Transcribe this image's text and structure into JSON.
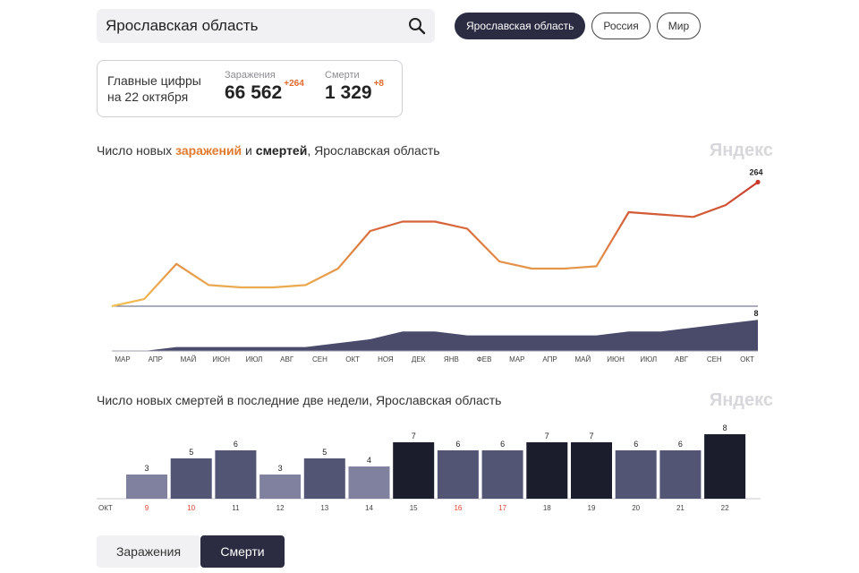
{
  "search": {
    "value": "Ярославская область"
  },
  "region_tabs": [
    {
      "label": "Ярославская область",
      "active": true
    },
    {
      "label": "Россия",
      "active": false
    },
    {
      "label": "Мир",
      "active": false
    }
  ],
  "stats": {
    "title_line1": "Главные цифры",
    "title_line2": "на 22 октября",
    "infections": {
      "label": "Заражения",
      "value": "66 562",
      "delta": "+264"
    },
    "deaths": {
      "label": "Смерти",
      "value": "1 329",
      "delta": "+8"
    }
  },
  "chart1": {
    "title_prefix": "Число новых ",
    "title_infections": "заражений",
    "title_middle": " и ",
    "title_deaths": "смертей",
    "title_suffix": ", Ярославская область",
    "watermark": "Яндекс",
    "last_infections_label": "264",
    "last_deaths_label": "8"
  },
  "chart2": {
    "title": "Число новых смертей в последние две недели, Ярославская область",
    "watermark": "Яндекс",
    "month_label": "ОКТ"
  },
  "bottom_tabs": [
    {
      "label": "Заражения",
      "active": false
    },
    {
      "label": "Смерти",
      "active": true
    }
  ],
  "colors": {
    "infection_start": "#f2be55",
    "infection_end": "#c8392c",
    "deaths_area": "#4a4b6a",
    "bar_light": "#7f819f",
    "bar_mid": "#535574",
    "bar_dark": "#1b1c2c",
    "weekend": "#e0442e"
  },
  "chart_data": [
    {
      "type": "line",
      "title": "Число новых заражений и смертей, Ярославская область",
      "x_ticks": [
        "МАР",
        "АПР",
        "МАЙ",
        "ИЮН",
        "ИЮЛ",
        "АВГ",
        "СЕН",
        "ОКТ",
        "НОЯ",
        "ДЕК",
        "ЯНВ",
        "ФЕВ",
        "МАР",
        "АПР",
        "МАЙ",
        "ИЮН",
        "ИЮЛ",
        "АВГ",
        "СЕН",
        "ОКТ"
      ],
      "series": [
        {
          "name": "заражений",
          "x": [
            "МАР",
            "АПР",
            "МАЙ",
            "ИЮН",
            "ИЮЛ",
            "АВГ",
            "СЕН",
            "ОКТ",
            "НОЯ",
            "ДЕК",
            "ЯНВ",
            "ФЕВ",
            "МАР",
            "АПР",
            "МАЙ",
            "ИЮН",
            "ИЮЛ",
            "АВГ",
            "СЕН",
            "ОКТ",
            "22 ОКТ"
          ],
          "values": [
            0,
            15,
            90,
            45,
            40,
            40,
            45,
            80,
            160,
            180,
            180,
            165,
            95,
            80,
            80,
            85,
            200,
            195,
            190,
            215,
            264
          ]
        },
        {
          "name": "смертей",
          "x": [
            "МАР",
            "АПР",
            "МАЙ",
            "ИЮН",
            "ИЮЛ",
            "АВГ",
            "СЕН",
            "ОКТ",
            "НОЯ",
            "ДЕК",
            "ЯНВ",
            "ФЕВ",
            "МАР",
            "АПР",
            "МАЙ",
            "ИЮН",
            "ИЮЛ",
            "АВГ",
            "СЕН",
            "ОКТ",
            "22 ОКТ"
          ],
          "values": [
            0,
            0,
            1,
            1,
            1,
            1,
            1,
            2,
            3,
            5,
            5,
            4,
            4,
            4,
            4,
            4,
            5,
            5,
            6,
            7,
            8
          ]
        }
      ]
    },
    {
      "type": "bar",
      "title": "Число новых смертей в последние две недели, Ярославская область",
      "categories": [
        "9",
        "10",
        "11",
        "12",
        "13",
        "14",
        "15",
        "16",
        "17",
        "18",
        "19",
        "20",
        "21",
        "22"
      ],
      "values": [
        3,
        5,
        6,
        3,
        5,
        4,
        7,
        6,
        6,
        7,
        7,
        6,
        6,
        8
      ],
      "weekend_days": [
        "9",
        "10",
        "16",
        "17"
      ],
      "month_label": "ОКТ"
    }
  ]
}
